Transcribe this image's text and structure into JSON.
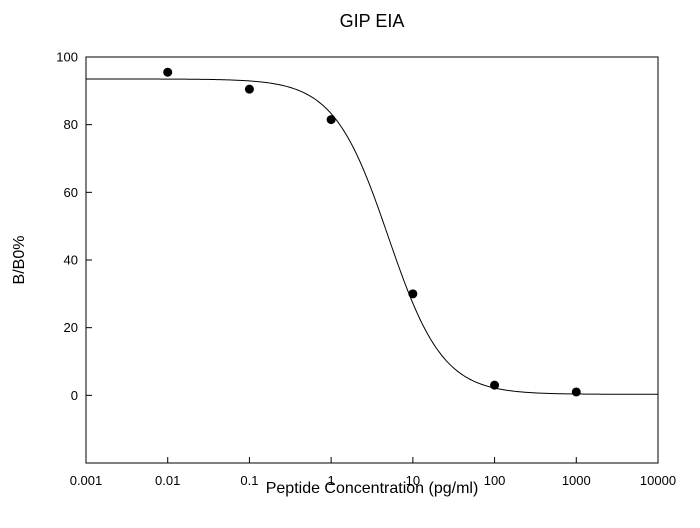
{
  "chart_data": {
    "type": "scatter",
    "title": "GIP EIA",
    "xlabel": "Peptide Concentration (pg/ml)",
    "ylabel": "B/B0%",
    "x_scale": "log",
    "xlim": [
      0.001,
      10000
    ],
    "ylim": [
      -20,
      100
    ],
    "x_ticks": [
      0.001,
      0.01,
      0.1,
      1,
      10,
      100,
      1000,
      10000
    ],
    "x_tick_labels": [
      "0.001",
      "0.01",
      "0.1",
      "1",
      "10",
      "100",
      "1000",
      "10000"
    ],
    "y_ticks": [
      0,
      20,
      40,
      60,
      80,
      100
    ],
    "y_tick_labels": [
      "0",
      "20",
      "40",
      "60",
      "80",
      "100"
    ],
    "grid": false,
    "legend": "none",
    "series": [
      {
        "kind": "points",
        "x": [
          0.01,
          0.1,
          1,
          10,
          100,
          1000
        ],
        "y": [
          95.5,
          90.5,
          81.5,
          30,
          3,
          1
        ]
      },
      {
        "kind": "fit-curve",
        "model": "4-parameter logistic",
        "top": 93.5,
        "bottom": 0.3,
        "ec50": 5,
        "hill": 1.3
      }
    ],
    "colors": {
      "points": "#000000",
      "curve": "#000000",
      "axes": "#000000"
    }
  }
}
